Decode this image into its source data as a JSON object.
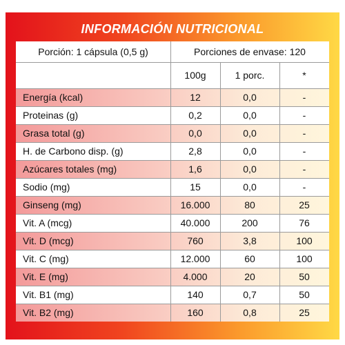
{
  "header": {
    "title": "INFORMACIÓN NUTRICIONAL"
  },
  "serving": {
    "portion": "Porción: 1 cápsula (0,5 g)",
    "servings": "Porciones de envase: 120"
  },
  "table": {
    "columns": [
      "100g",
      "1 porc.",
      "*"
    ],
    "rows": [
      [
        "Energía (kcal)",
        "12",
        "0,0",
        "-"
      ],
      [
        "Proteinas (g)",
        "0,2",
        "0,0",
        "-"
      ],
      [
        "Grasa total (g)",
        "0,0",
        "0,0",
        "-"
      ],
      [
        "H. de Carbono disp. (g)",
        "2,8",
        "0,0",
        "-"
      ],
      [
        "Azúcares totales (mg)",
        "1,6",
        "0,0",
        "-"
      ],
      [
        "Sodio (mg)",
        "15",
        "0,0",
        "-"
      ],
      [
        "Ginseng (mg)",
        "16.000",
        "80",
        "25"
      ],
      [
        "Vit. A (mcg)",
        "40.000",
        "200",
        "76"
      ],
      [
        "Vit. D (mcg)",
        "760",
        "3,8",
        "100"
      ],
      [
        "Vit. C (mg)",
        "12.000",
        "60",
        "100"
      ],
      [
        "Vit. E (mg)",
        "4.000",
        "20",
        "50"
      ],
      [
        "Vit. B1 (mg)",
        "140",
        "0,7",
        "50"
      ],
      [
        "Vit. B2 (mg)",
        "160",
        "0,8",
        "25"
      ]
    ]
  }
}
